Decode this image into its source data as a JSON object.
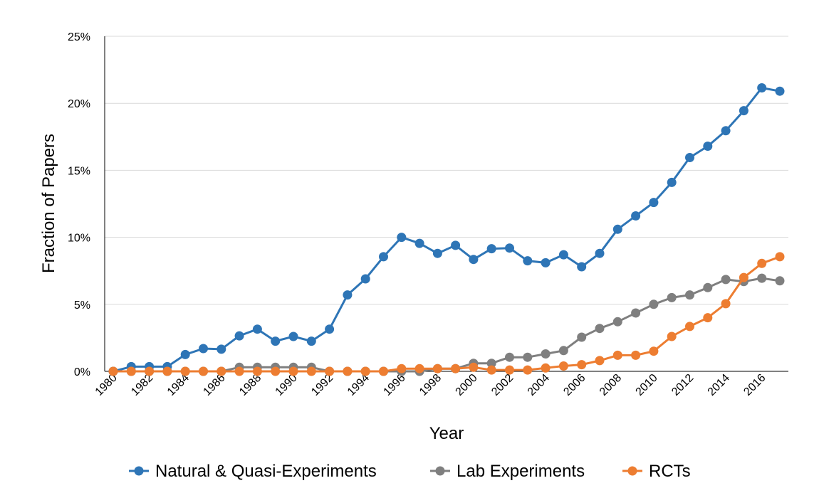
{
  "chart_data": {
    "type": "line",
    "title": "",
    "xlabel": "Year",
    "ylabel": "Fraction of Papers",
    "x": [
      1980,
      1981,
      1982,
      1983,
      1984,
      1985,
      1986,
      1987,
      1988,
      1989,
      1990,
      1991,
      1992,
      1993,
      1994,
      1995,
      1996,
      1997,
      1998,
      1999,
      2000,
      2001,
      2002,
      2003,
      2004,
      2005,
      2006,
      2007,
      2008,
      2009,
      2010,
      2011,
      2012,
      2013,
      2014,
      2015,
      2016,
      2017
    ],
    "xlim": [
      1980,
      2017
    ],
    "ylim": [
      0,
      25
    ],
    "x_ticks": [
      "1980",
      "1982",
      "1984",
      "1986",
      "1988",
      "1990",
      "1992",
      "1994",
      "1996",
      "1998",
      "2000",
      "2002",
      "2004",
      "2006",
      "2008",
      "2010",
      "2012",
      "2014",
      "2016"
    ],
    "y_ticks": [
      "0%",
      "5%",
      "10%",
      "15%",
      "20%",
      "25%"
    ],
    "grid": true,
    "legend_position": "bottom",
    "series": [
      {
        "name": "Natural & Quasi-Experiments",
        "color": "#2e75b6",
        "values": [
          0,
          0.35,
          0.35,
          0.35,
          1.25,
          1.7,
          1.65,
          2.65,
          3.15,
          2.25,
          2.6,
          2.25,
          3.15,
          5.7,
          6.9,
          8.55,
          10.0,
          9.55,
          8.8,
          9.4,
          8.35,
          9.15,
          9.2,
          8.25,
          8.1,
          8.7,
          7.8,
          8.8,
          10.6,
          11.6,
          12.6,
          14.1,
          15.95,
          16.8,
          17.95,
          19.45,
          21.15,
          20.9
        ]
      },
      {
        "name": "Lab Experiments",
        "color": "#7f7f7f",
        "values": [
          0,
          0,
          0,
          0,
          0,
          0,
          0,
          0.3,
          0.3,
          0.3,
          0.3,
          0.3,
          0,
          0,
          0,
          0,
          0,
          0,
          0.2,
          0.2,
          0.6,
          0.6,
          1.05,
          1.05,
          1.3,
          1.55,
          2.55,
          3.2,
          3.7,
          4.35,
          5.0,
          5.5,
          5.7,
          6.25,
          6.85,
          6.7,
          6.95,
          6.75
        ]
      },
      {
        "name": "RCTs",
        "color": "#ed7d31",
        "values": [
          0,
          0,
          0,
          0,
          0,
          0,
          0,
          0,
          0,
          0,
          0,
          0,
          0,
          0,
          0,
          0,
          0.2,
          0.2,
          0.2,
          0.2,
          0.3,
          0.1,
          0.1,
          0.1,
          0.25,
          0.4,
          0.5,
          0.8,
          1.2,
          1.2,
          1.5,
          2.6,
          3.35,
          4.0,
          5.05,
          7.0,
          8.05,
          8.55
        ]
      }
    ]
  }
}
